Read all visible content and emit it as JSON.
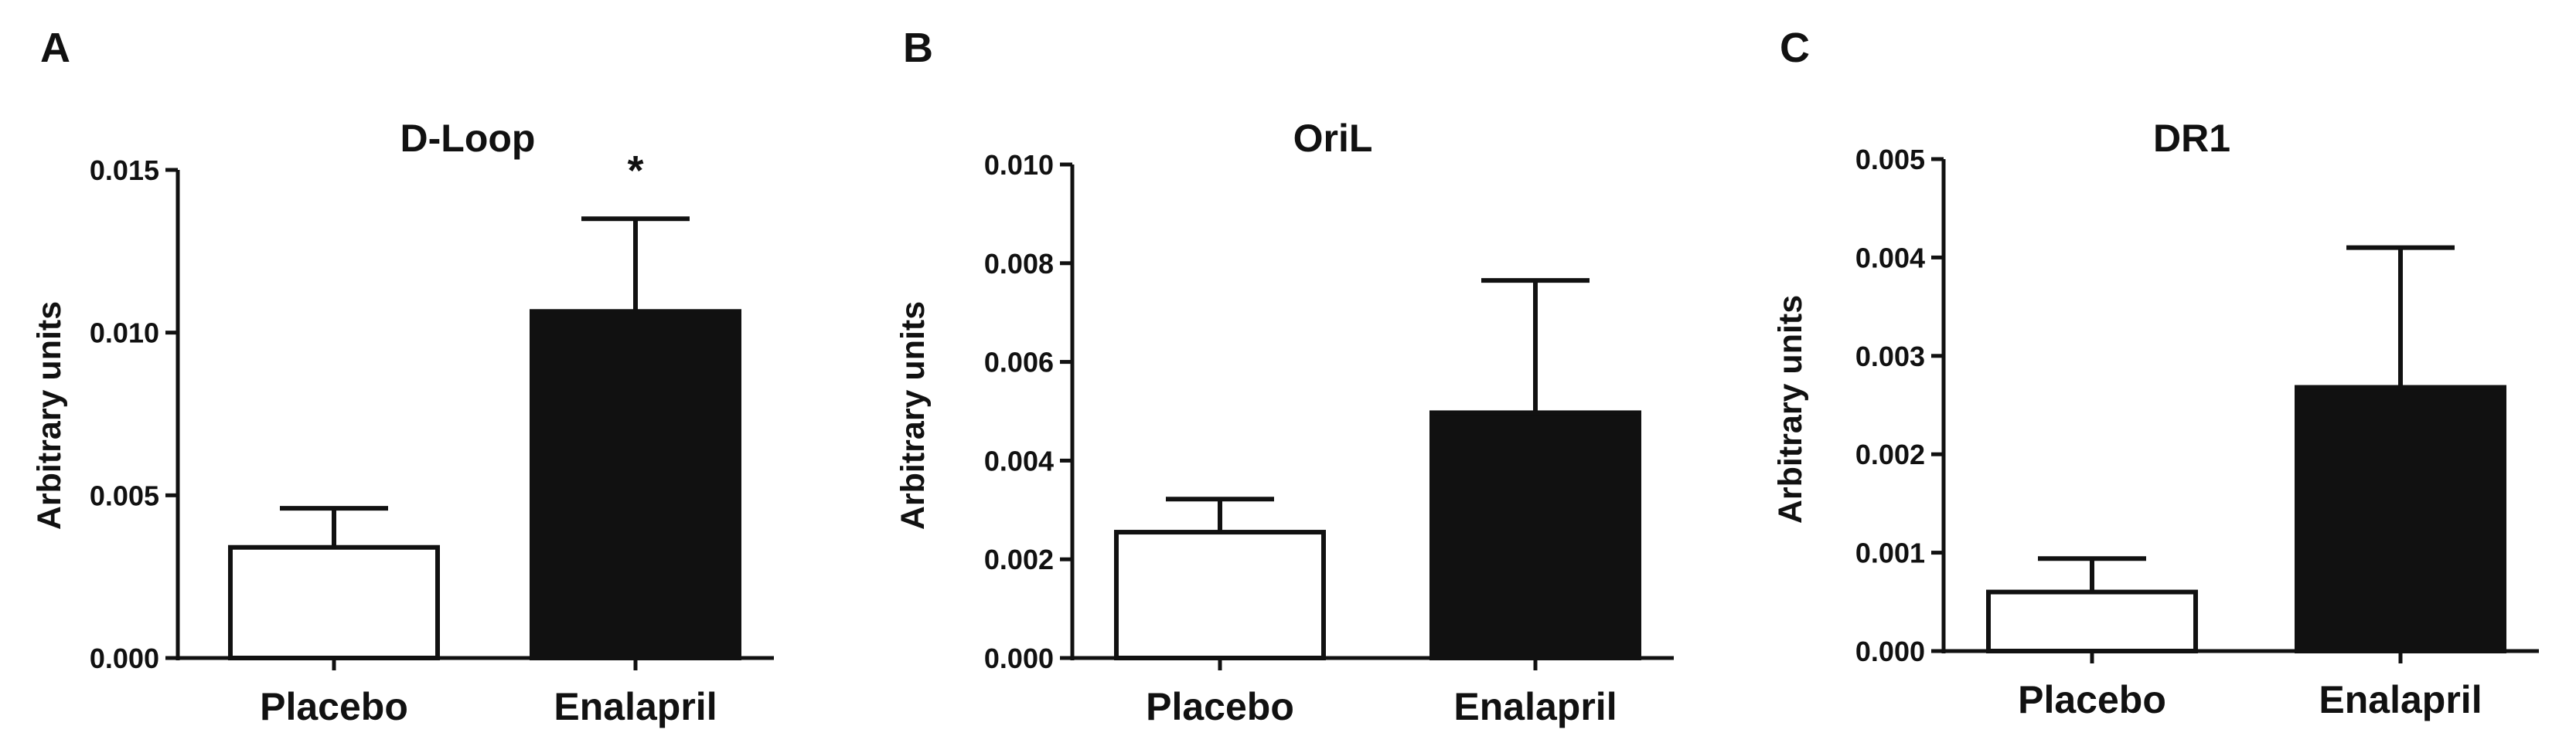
{
  "panels": [
    {
      "letter": "A",
      "chart_data": {
        "type": "bar",
        "title": "D-Loop",
        "xlabel": "",
        "ylabel": "Arbitrary units",
        "categories": [
          "Placebo",
          "Enalapril"
        ],
        "values": [
          0.0034,
          0.01065
        ],
        "errors": [
          0.0012,
          0.00285
        ],
        "bar_colors": [
          "#ffffff",
          "#111111"
        ],
        "ylim": [
          0,
          0.015
        ],
        "yticks": [
          "0.000",
          "0.005",
          "0.010",
          "0.015"
        ],
        "annotations": [
          {
            "category": "Enalapril",
            "text": "*"
          }
        ],
        "grid": false,
        "legend": "none"
      }
    },
    {
      "letter": "B",
      "chart_data": {
        "type": "bar",
        "title": "OriL",
        "xlabel": "",
        "ylabel": "Arbitrary units",
        "categories": [
          "Placebo",
          "Enalapril"
        ],
        "values": [
          0.00255,
          0.00497
        ],
        "errors": [
          0.00067,
          0.00268
        ],
        "bar_colors": [
          "#ffffff",
          "#111111"
        ],
        "ylim": [
          0,
          0.01
        ],
        "yticks": [
          "0.000",
          "0.002",
          "0.004",
          "0.006",
          "0.008",
          "0.010"
        ],
        "annotations": [],
        "grid": false,
        "legend": "none"
      }
    },
    {
      "letter": "C",
      "chart_data": {
        "type": "bar",
        "title": "DR1",
        "xlabel": "",
        "ylabel": "Arbitrary units",
        "categories": [
          "Placebo",
          "Enalapril"
        ],
        "values": [
          0.0006,
          0.00268
        ],
        "errors": [
          0.00034,
          0.00142
        ],
        "bar_colors": [
          "#ffffff",
          "#111111"
        ],
        "ylim": [
          0,
          0.005
        ],
        "yticks": [
          "0.000",
          "0.001",
          "0.002",
          "0.003",
          "0.004",
          "0.005"
        ],
        "annotations": [],
        "grid": false,
        "legend": "none"
      }
    }
  ]
}
